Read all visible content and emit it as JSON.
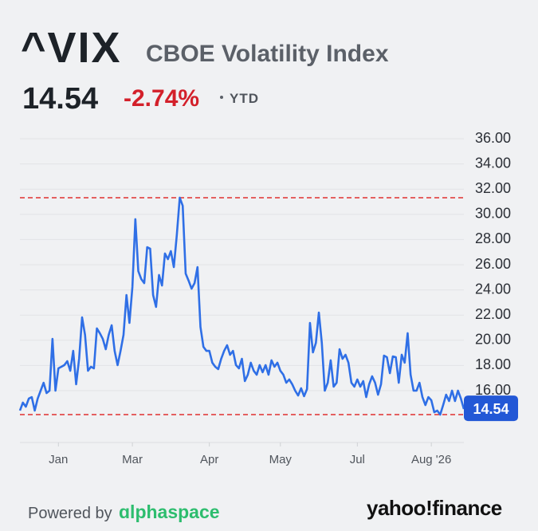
{
  "header": {
    "symbol": "^VIX",
    "name": "CBOE Volatility Index",
    "price": "14.54",
    "change": "-2.74%",
    "period": "YTD"
  },
  "chart_data": {
    "type": "line",
    "color": "#2f6fe6",
    "values": [
      14.42,
      15.05,
      14.73,
      15.37,
      15.49,
      14.42,
      15.37,
      16.0,
      16.63,
      15.81,
      16.0,
      20.11,
      16.0,
      17.77,
      17.9,
      18.03,
      18.34,
      17.58,
      19.16,
      16.51,
      18.53,
      21.82,
      20.43,
      17.58,
      17.9,
      17.77,
      20.94,
      20.56,
      20.11,
      19.29,
      20.43,
      21.19,
      19.16,
      18.03,
      19.16,
      20.43,
      23.59,
      21.38,
      24.23,
      29.61,
      25.49,
      24.86,
      24.54,
      27.39,
      27.27,
      23.59,
      22.65,
      25.18,
      24.35,
      26.89,
      26.44,
      27.08,
      25.81,
      28.34,
      31.32,
      30.68,
      25.3,
      24.73,
      24.1,
      24.54,
      25.81,
      21.06,
      19.48,
      19.16,
      19.16,
      18.22,
      17.9,
      17.71,
      18.53,
      19.16,
      19.61,
      18.85,
      19.16,
      18.03,
      17.77,
      18.53,
      16.76,
      17.27,
      18.22,
      17.58,
      17.27,
      18.03,
      17.46,
      18.03,
      17.27,
      18.41,
      17.9,
      18.22,
      17.58,
      17.27,
      16.63,
      16.89,
      16.51,
      16.0,
      15.62,
      16.19,
      15.56,
      16.13,
      21.38,
      19.04,
      19.8,
      22.2,
      19.8,
      16.0,
      16.63,
      18.41,
      16.32,
      16.63,
      19.29,
      18.53,
      18.85,
      18.22,
      16.63,
      16.32,
      16.89,
      16.32,
      16.76,
      15.49,
      16.51,
      17.14,
      16.63,
      15.68,
      16.51,
      18.78,
      18.66,
      17.39,
      18.72,
      18.66,
      16.63,
      18.85,
      18.22,
      20.56,
      17.27,
      16.0,
      16.0,
      16.63,
      15.49,
      14.86,
      15.49,
      15.24,
      14.29,
      14.42,
      14.1,
      14.86,
      15.68,
      15.18,
      16.0,
      15.18,
      16.0,
      15.37,
      14.54
    ],
    "xlim": [
      0,
      150
    ],
    "xticks": [
      {
        "value": 13,
        "label": "Jan"
      },
      {
        "value": 38,
        "label": "Mar"
      },
      {
        "value": 64,
        "label": "Apr"
      },
      {
        "value": 88,
        "label": "May"
      },
      {
        "value": 114,
        "label": "Jul"
      },
      {
        "value": 139,
        "label": "Aug '26"
      }
    ],
    "ylim": [
      12,
      36.9
    ],
    "yticks": [
      {
        "value": 16,
        "label": "16.00"
      },
      {
        "value": 18,
        "label": "18.00"
      },
      {
        "value": 20,
        "label": "20.00"
      },
      {
        "value": 22,
        "label": "22.00"
      },
      {
        "value": 24,
        "label": "24.00"
      },
      {
        "value": 26,
        "label": "26.00"
      },
      {
        "value": 28,
        "label": "28.00"
      },
      {
        "value": 30,
        "label": "30.00"
      },
      {
        "value": 32,
        "label": "32.00"
      },
      {
        "value": 34,
        "label": "34.00"
      },
      {
        "value": 36,
        "label": "36.00"
      }
    ],
    "grid": true,
    "reference_lines": [
      {
        "value": 31.32,
        "color": "#e0302f"
      },
      {
        "value": 14.1,
        "color": "#e0302f"
      }
    ]
  },
  "footer": {
    "powered": "Powered by",
    "partner": "ɑlphaspace",
    "brand": "yahoo!finance"
  }
}
